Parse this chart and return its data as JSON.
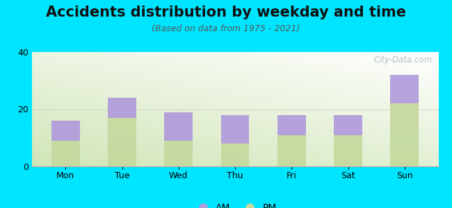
{
  "title": "Accidents distribution by weekday and time",
  "subtitle": "(Based on data from 1975 - 2021)",
  "categories": [
    "Mon",
    "Tue",
    "Wed",
    "Thu",
    "Fri",
    "Sat",
    "Sun"
  ],
  "pm_values": [
    9,
    17,
    9,
    8,
    11,
    11,
    22
  ],
  "am_values": [
    7,
    7,
    10,
    10,
    7,
    7,
    10
  ],
  "am_color": "#b39ddb",
  "pm_color": "#c5d9a0",
  "background_color": "#00e5ff",
  "ylim": [
    0,
    40
  ],
  "yticks": [
    0,
    20,
    40
  ],
  "bar_width": 0.5,
  "title_fontsize": 15,
  "subtitle_fontsize": 9,
  "tick_fontsize": 9,
  "legend_fontsize": 10,
  "watermark_text": "City-Data.com",
  "watermark_color": "#a0baba",
  "figsize": [
    6.5,
    3.0
  ],
  "dpi": 100
}
